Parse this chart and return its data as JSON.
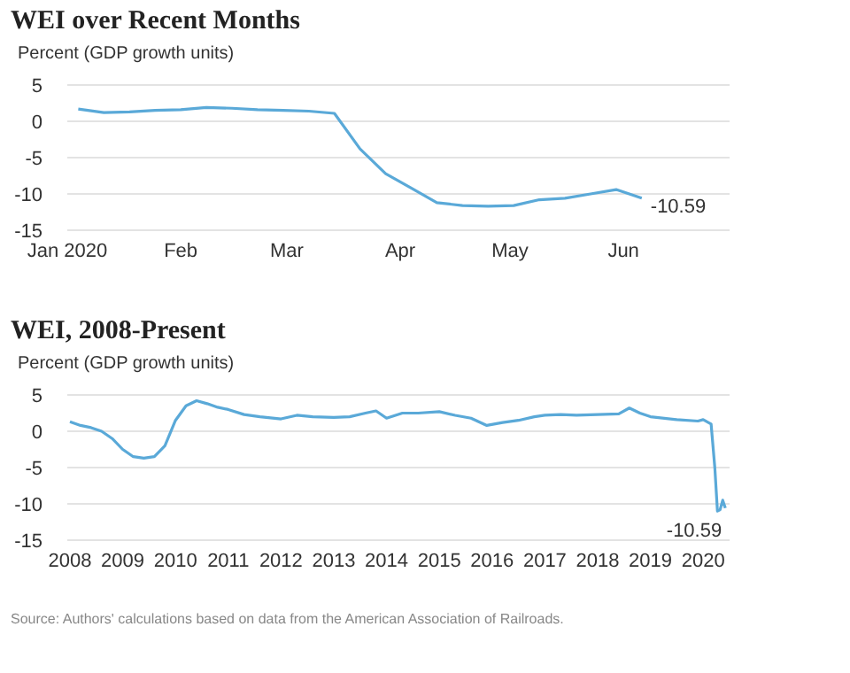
{
  "chart_data": [
    {
      "type": "line",
      "title": "WEI over Recent Months",
      "ylabel": "Percent (GDP growth units)",
      "xlim": [
        "2020-01-01",
        "2020-06-30"
      ],
      "xticks": [
        {
          "value": "2020-01-01",
          "label": "Jan 2020"
        },
        {
          "value": "2020-02-01",
          "label": "Feb"
        },
        {
          "value": "2020-03-01",
          "label": "Mar"
        },
        {
          "value": "2020-04-01",
          "label": "Apr"
        },
        {
          "value": "2020-05-01",
          "label": "May"
        },
        {
          "value": "2020-06-01",
          "label": "Jun"
        }
      ],
      "ylim": [
        -15,
        5
      ],
      "yticks": [
        5,
        0,
        -5,
        -10,
        -15
      ],
      "grid": "y",
      "x": [
        "2020-01-04",
        "2020-01-11",
        "2020-01-18",
        "2020-01-25",
        "2020-02-01",
        "2020-02-08",
        "2020-02-15",
        "2020-02-22",
        "2020-02-29",
        "2020-03-07",
        "2020-03-14",
        "2020-03-21",
        "2020-03-28",
        "2020-04-04",
        "2020-04-11",
        "2020-04-18",
        "2020-04-25",
        "2020-05-02",
        "2020-05-09",
        "2020-05-16",
        "2020-05-23",
        "2020-05-30",
        "2020-06-06"
      ],
      "series": [
        {
          "color": "#5aa9d8",
          "values": [
            1.7,
            1.2,
            1.3,
            1.5,
            1.6,
            1.9,
            1.8,
            1.6,
            1.5,
            1.4,
            1.1,
            -3.8,
            -7.2,
            -9.2,
            -11.2,
            -11.6,
            -11.7,
            -11.6,
            -10.8,
            -10.6,
            -10.0,
            -9.4,
            -10.59
          ]
        }
      ],
      "annotations": [
        {
          "text": "-10.59",
          "x": "2020-06-06",
          "y": -10.59
        }
      ]
    },
    {
      "type": "line",
      "title": "WEI, 2008-Present",
      "ylabel": "Percent (GDP growth units)",
      "xlim": [
        2007.95,
        2020.5
      ],
      "xticks": [
        2008,
        2009,
        2010,
        2011,
        2012,
        2013,
        2014,
        2015,
        2016,
        2017,
        2018,
        2019,
        2020
      ],
      "ylim": [
        -15,
        5
      ],
      "yticks": [
        5,
        0,
        -5,
        -10,
        -15
      ],
      "grid": "y",
      "x": [
        2008,
        2008.2,
        2008.4,
        2008.6,
        2008.8,
        2009,
        2009.2,
        2009.4,
        2009.6,
        2009.8,
        2010,
        2010.2,
        2010.4,
        2010.6,
        2010.8,
        2011,
        2011.3,
        2011.6,
        2012,
        2012.3,
        2012.6,
        2013,
        2013.3,
        2013.6,
        2013.8,
        2014,
        2014.3,
        2014.6,
        2015,
        2015.3,
        2015.6,
        2015.9,
        2016.2,
        2016.5,
        2016.8,
        2017,
        2017.3,
        2017.6,
        2018,
        2018.4,
        2018.6,
        2018.8,
        2019,
        2019.5,
        2019.9,
        2020,
        2020.15,
        2020.22,
        2020.27,
        2020.32,
        2020.37,
        2020.42
      ],
      "series": [
        {
          "color": "#5aa9d8",
          "values": [
            1.3,
            0.8,
            0.5,
            0,
            -1,
            -2.5,
            -3.5,
            -3.7,
            -3.5,
            -2,
            1.5,
            3.5,
            4.2,
            3.8,
            3.3,
            3,
            2.3,
            2,
            1.7,
            2.2,
            2,
            1.9,
            2,
            2.5,
            2.8,
            1.8,
            2.5,
            2.5,
            2.7,
            2.2,
            1.8,
            0.8,
            1.2,
            1.5,
            2,
            2.2,
            2.3,
            2.2,
            2.3,
            2.4,
            3.2,
            2.5,
            2,
            1.6,
            1.4,
            1.6,
            1,
            -5,
            -11,
            -10.8,
            -9.5,
            -10.59
          ]
        }
      ],
      "annotations": [
        {
          "text": "-10.59",
          "x": 2020.42,
          "y": -10.59
        },
        "Source: Authors' calculations based on data from the American Association of Railroads."
      ]
    }
  ]
}
